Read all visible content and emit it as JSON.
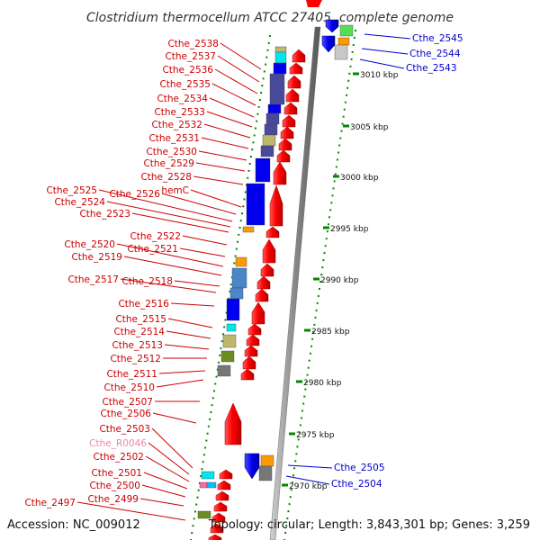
{
  "title": "Clostridium thermocellum ATCC 27405, complete genome",
  "footer": {
    "accession": "Accession: NC_009012",
    "summary": "Topology: circular; Length: 3,843,301 bp; Genes: 3,259"
  },
  "scale_ticks": [
    "3010 kbp",
    "3005 kbp",
    "3000 kbp",
    "2995 kbp",
    "2990 kbp",
    "2985 kbp",
    "2980 kbp",
    "2975 kbp",
    "2970 kbp"
  ],
  "left_labels": [
    "Cthe_2538",
    "Cthe_2537",
    "Cthe_2536",
    "Cthe_2535",
    "Cthe_2534",
    "Cthe_2533",
    "Cthe_2532",
    "Cthe_2531",
    "Cthe_2530",
    "Cthe_2529",
    "Cthe_2528",
    "Cthe_2525",
    "Cthe_2526",
    "hemC",
    "Cthe_2524",
    "Cthe_2523",
    "Cthe_2522",
    "Cthe_2520",
    "Cthe_2521",
    "Cthe_2519",
    "Cthe_2517",
    "Cthe_2518",
    "Cthe_2516",
    "Cthe_2515",
    "Cthe_2514",
    "Cthe_2513",
    "Cthe_2512",
    "Cthe_2511",
    "Cthe_2510",
    "Cthe_2507",
    "Cthe_2506",
    "Cthe_2503",
    "Cthe_R0046",
    "Cthe_2502",
    "Cthe_2501",
    "Cthe_2500",
    "Cthe_2499",
    "Cthe_2497"
  ],
  "right_labels": [
    "Cthe_2545",
    "Cthe_2544",
    "Cthe_2543",
    "Cthe_2505",
    "Cthe_2504"
  ],
  "colors": {
    "forward_label": "#cc0000",
    "reverse_label": "#0000cc",
    "rna_label": "#e88aa8",
    "forward_gene": "#ff0000",
    "reverse_gene": "#0000ee",
    "backbone": "#8a8a8a",
    "tick": "#008800"
  }
}
